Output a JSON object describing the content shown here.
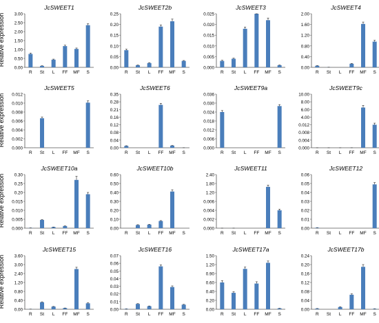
{
  "figure": {
    "ylabel": "Relative expression",
    "bar_color": "#4a7ebb"
  },
  "chart_data": [
    {
      "type": "bar",
      "title": "JcSWEET1",
      "categories": [
        "R",
        "St",
        "L",
        "FF",
        "MF",
        "S"
      ],
      "values": [
        0.75,
        0.08,
        0.43,
        1.19,
        1.03,
        2.36
      ],
      "errors": [
        0.05,
        0.01,
        0.03,
        0.05,
        0.05,
        0.08
      ],
      "ylim": [
        0,
        3
      ],
      "yticks": [
        "0.00",
        "0.50",
        "1.00",
        "1.50",
        "2.00",
        "2.50",
        "3.00"
      ],
      "ylabel": "Relative expression"
    },
    {
      "type": "bar",
      "title": "JcSWEET2b",
      "categories": [
        "R",
        "St",
        "L",
        "FF",
        "MF",
        "S"
      ],
      "values": [
        0.08,
        0.01,
        0.02,
        0.19,
        0.215,
        0.03
      ],
      "errors": [
        0.005,
        0.001,
        0.002,
        0.008,
        0.01,
        0.002
      ],
      "ylim": [
        0,
        0.25
      ],
      "yticks": [
        "0.00",
        "0.05",
        "0.10",
        "0.15",
        "0.20",
        "0.25"
      ],
      "ylabel": ""
    },
    {
      "type": "bar",
      "title": "JcSWEET3",
      "categories": [
        "R",
        "St",
        "L",
        "FF",
        "MF",
        "S"
      ],
      "values": [
        0.003,
        0.004,
        0.018,
        0.025,
        0.022,
        0.001
      ],
      "errors": [
        0.0003,
        0.0003,
        0.0008,
        0.001,
        0.001,
        0.0001
      ],
      "ylim": [
        0,
        0.025
      ],
      "yticks": [
        "0.000",
        "0.005",
        "0.010",
        "0.015",
        "0.020",
        "0.025"
      ],
      "ylabel": ""
    },
    {
      "type": "bar",
      "title": "JcSWEET4",
      "categories": [
        "R",
        "St",
        "L",
        "FF",
        "MF",
        "S"
      ],
      "values": [
        0.06,
        0.005,
        0.0,
        0.135,
        1.62,
        0.96
      ],
      "errors": [
        0.006,
        0.001,
        0,
        0.01,
        0.07,
        0.05
      ],
      "ylim": [
        0,
        2
      ],
      "yticks": [
        "0.00",
        "0.40",
        "0.80",
        "1.20",
        "1.60",
        "2.00"
      ],
      "ylabel": ""
    },
    {
      "type": "bar",
      "title": "JcSWEET5",
      "categories": [
        "R",
        "St",
        "L",
        "FF",
        "MF",
        "S"
      ],
      "values": [
        0,
        0.0066,
        0,
        0,
        0,
        0.0101
      ],
      "errors": [
        0,
        0.0003,
        0,
        0,
        0,
        0.0004
      ],
      "ylim": [
        0,
        0.012
      ],
      "yticks": [
        "0.000",
        "0.002",
        "0.004",
        "0.006",
        "0.008",
        "0.010",
        "0.012"
      ],
      "ylabel": "Relative expression"
    },
    {
      "type": "bar",
      "title": "JcSWEET6",
      "categories": [
        "R",
        "St",
        "L",
        "FF",
        "MF",
        "S"
      ],
      "values": [
        0.012,
        0,
        0,
        0.28,
        0.014,
        0.0003
      ],
      "errors": [
        0.0015,
        0,
        0,
        0.01,
        0.001,
        0.0001
      ],
      "ylim": [
        0,
        0.35
      ],
      "yticks": [
        "0.00",
        "0.04",
        "0.08",
        "0.12",
        "0.16",
        "0.21",
        "0.28",
        "0.35"
      ],
      "ylabel": ""
    },
    {
      "type": "bar",
      "title": "JcSWEET9a",
      "categories": [
        "R",
        "St",
        "L",
        "FF",
        "MF",
        "S"
      ],
      "values": [
        0.024,
        0,
        0,
        0,
        0,
        0.028
      ],
      "errors": [
        0.001,
        0,
        0,
        0,
        0,
        0.001
      ],
      "ylim": [
        0,
        0.036
      ],
      "yticks": [
        "0.000",
        "0.006",
        "0.012",
        "0.018",
        "0.024",
        "0.030",
        "0.036"
      ],
      "ylabel": ""
    },
    {
      "type": "bar",
      "title": "JcSWEET9c",
      "categories": [
        "R",
        "St",
        "L",
        "FF",
        "MF",
        "S"
      ],
      "values": [
        0.0005,
        0.0003,
        0.0006,
        0.006,
        7.5,
        4.3
      ],
      "errors": [
        0.0001,
        0.0001,
        0.0001,
        0.0005,
        0.4,
        0.3
      ],
      "ylim": [
        0,
        10
      ],
      "yticks": [
        "0.000",
        "0.004",
        "0.008",
        "0.012",
        "4.00",
        "6.00",
        "8.00",
        "10.00"
      ],
      "ylabel": ""
    },
    {
      "type": "bar",
      "title": "JcSWEET10a",
      "categories": [
        "R",
        "St",
        "L",
        "FF",
        "MF",
        "S"
      ],
      "values": [
        0.0015,
        0.046,
        0.006,
        0.012,
        0.27,
        0.19
      ],
      "errors": [
        0.0002,
        0.002,
        0.0004,
        0.0006,
        0.02,
        0.01
      ],
      "ylim": [
        0,
        0.3
      ],
      "yticks": [
        "0.000",
        "0.005",
        "0.010",
        "0.015",
        "0.20",
        "0.25",
        "0.30"
      ],
      "ylabel": "Relative expression"
    },
    {
      "type": "bar",
      "title": "JcSWEET10b",
      "categories": [
        "R",
        "St",
        "L",
        "FF",
        "MF",
        "S"
      ],
      "values": [
        0,
        0.035,
        0.04,
        0.08,
        0.41,
        0
      ],
      "errors": [
        0,
        0.004,
        0.003,
        0.005,
        0.02,
        0
      ],
      "ylim": [
        0,
        0.6
      ],
      "yticks": [
        "0.00",
        "0.10",
        "0.20",
        "0.30",
        "0.40",
        "0.50",
        "0.60"
      ],
      "ylabel": ""
    },
    {
      "type": "bar",
      "title": "JcSWEET11",
      "categories": [
        "R",
        "St",
        "L",
        "FF",
        "MF",
        "S"
      ],
      "values": [
        0.0006,
        0.0014,
        0,
        0,
        1.85,
        0.8
      ],
      "errors": [
        5e-05,
        0.0001,
        0,
        0,
        0.08,
        0.05
      ],
      "ylim": [
        0,
        2.4
      ],
      "yticks": [
        "0.000",
        "0.002",
        "0.004",
        "0.006",
        "1.20",
        "1.80",
        "2.40"
      ],
      "ylabel": ""
    },
    {
      "type": "bar",
      "title": "JcSWEET12",
      "categories": [
        "R",
        "St",
        "L",
        "FF",
        "MF",
        "S"
      ],
      "values": [
        0.0005,
        0,
        0,
        0,
        0,
        0.049
      ],
      "errors": [
        0.0001,
        0,
        0,
        0,
        0,
        0.002
      ],
      "ylim": [
        0,
        0.06
      ],
      "yticks": [
        "0.00",
        "0.01",
        "0.02",
        "0.03",
        "0.04",
        "0.05",
        "0.06"
      ],
      "ylabel": ""
    },
    {
      "type": "bar",
      "title": "JcSWEET15",
      "categories": [
        "R",
        "St",
        "L",
        "FF",
        "MF",
        "S"
      ],
      "values": [
        0.01,
        0.47,
        0.18,
        0.08,
        2.7,
        0.4
      ],
      "errors": [
        0.002,
        0.03,
        0.01,
        0.005,
        0.12,
        0.03
      ],
      "ylim": [
        0,
        3.6
      ],
      "yticks": [
        "0.00",
        "0.40",
        "0.80",
        "1.20",
        "2.40",
        "3.00",
        "3.60"
      ],
      "ylabel": "Relative expression"
    },
    {
      "type": "bar",
      "title": "JcSWEET16",
      "categories": [
        "R",
        "St",
        "L",
        "FF",
        "MF",
        "S"
      ],
      "values": [
        0.0005,
        0.007,
        0.004,
        0.056,
        0.029,
        0.006
      ],
      "errors": [
        0.0001,
        0.0004,
        0.0003,
        0.002,
        0.0015,
        0.0004
      ],
      "ylim": [
        0,
        0.07
      ],
      "yticks": [
        "0.00",
        "0.01",
        "0.02",
        "0.03",
        "0.04",
        "0.05",
        "0.06",
        "0.07"
      ],
      "ylabel": ""
    },
    {
      "type": "bar",
      "title": "JcSWEET17a",
      "categories": [
        "R",
        "St",
        "L",
        "FF",
        "MF",
        "S"
      ],
      "values": [
        0.75,
        0.46,
        1.13,
        0.72,
        1.3,
        0.025
      ],
      "errors": [
        0.05,
        0.03,
        0.05,
        0.05,
        0.05,
        0.003
      ],
      "ylim": [
        0,
        1.5
      ],
      "yticks": [
        "0.00",
        "0.20",
        "0.40",
        "0.60",
        "0.90",
        "1.20",
        "1.50"
      ],
      "ylabel": ""
    },
    {
      "type": "bar",
      "title": "JcSWEET17b",
      "categories": [
        "R",
        "St",
        "L",
        "FF",
        "MF",
        "S"
      ],
      "values": [
        0.003,
        0,
        0.01,
        0.065,
        0.19,
        0.002
      ],
      "errors": [
        0.0005,
        0,
        0.001,
        0.004,
        0.01,
        0.0004
      ],
      "ylim": [
        0,
        0.24
      ],
      "yticks": [
        "0.00",
        "0.04",
        "0.08",
        "0.12",
        "0.16",
        "0.20",
        "0.24"
      ],
      "ylabel": ""
    }
  ]
}
